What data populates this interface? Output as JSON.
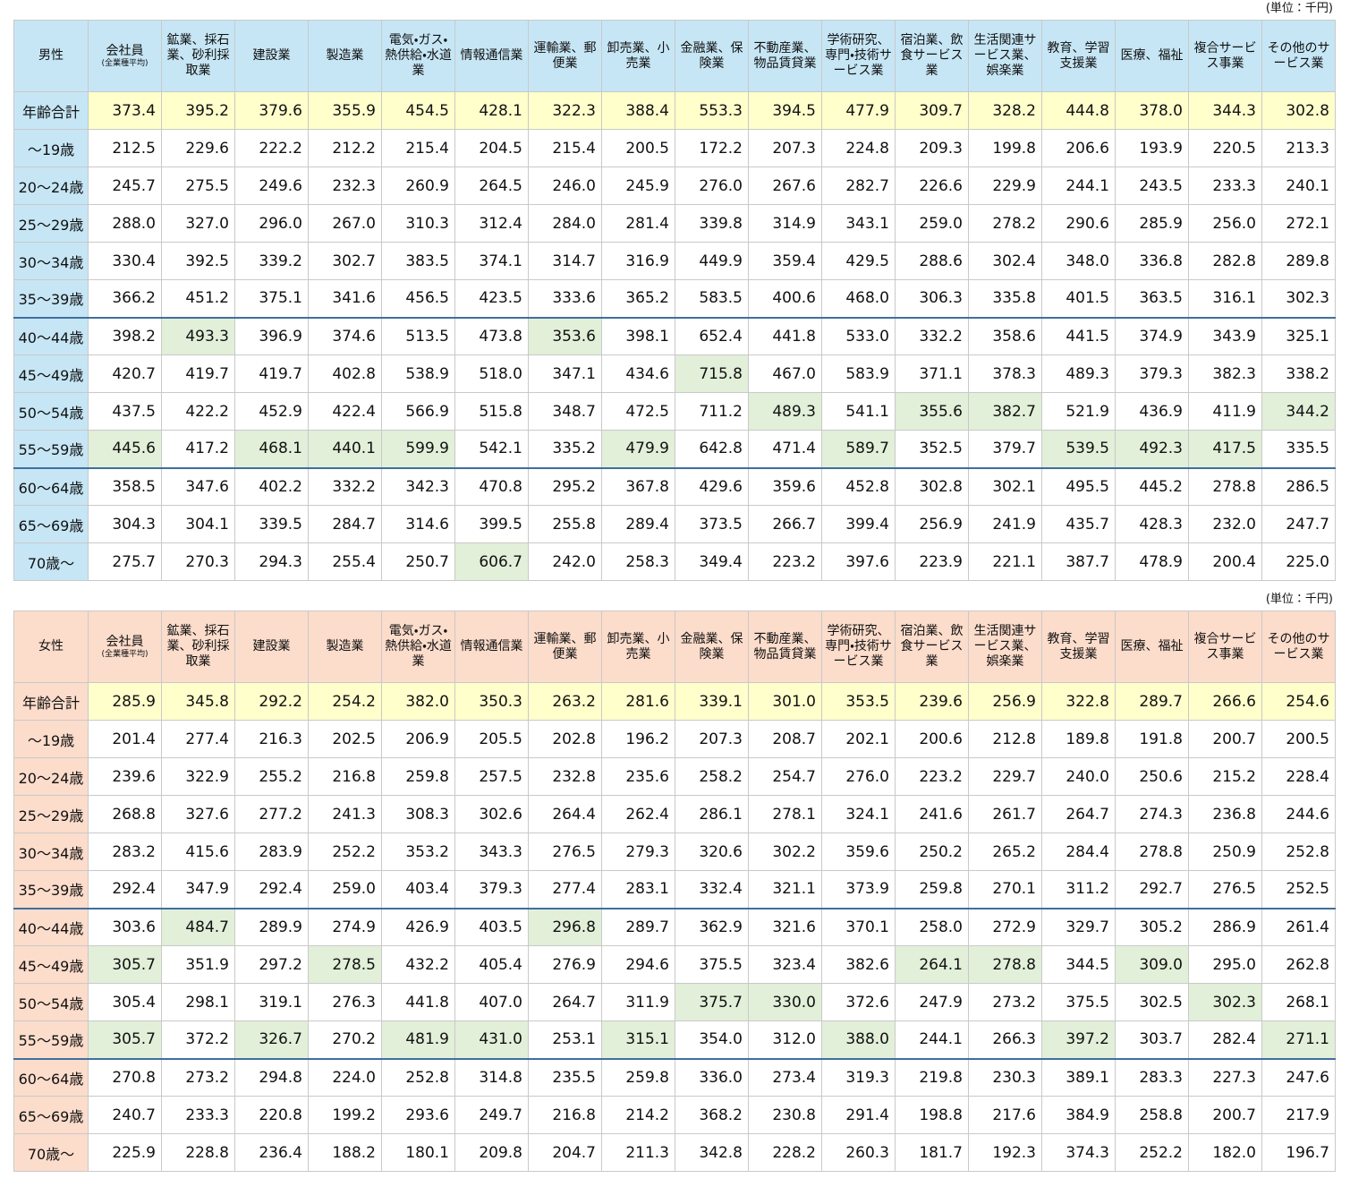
{
  "tables": [
    {
      "unit": "(単位：千円)",
      "corner": "男性",
      "column_note": "(全業種平均)",
      "columns": [
        "会社員",
        "鉱業、採石業、砂利採取業",
        "建設業",
        "製造業",
        "電気・ガス・熱供給・水道業",
        "情報通信業",
        "運輸業、郵便業",
        "卸売業、小売業",
        "金融業、保険業",
        "不動産業、物品賃貸業",
        "学術研究、専門・技術サービス業",
        "宿泊業、飲食サービス業",
        "生活関連サービス業、娯楽業",
        "教育、学習支援業",
        "医療、福祉",
        "複合サービス事業",
        "その他のサービス業"
      ],
      "rows": [
        {
          "label": "年齢合計",
          "values": [
            "373.4",
            "395.2",
            "379.6",
            "355.9",
            "454.5",
            "428.1",
            "322.3",
            "388.4",
            "553.3",
            "394.5",
            "477.9",
            "309.7",
            "328.2",
            "444.8",
            "378.0",
            "344.3",
            "302.8"
          ]
        },
        {
          "label": "～19歳",
          "values": [
            "212.5",
            "229.6",
            "222.2",
            "212.2",
            "215.4",
            "204.5",
            "215.4",
            "200.5",
            "172.2",
            "207.3",
            "224.8",
            "209.3",
            "199.8",
            "206.6",
            "193.9",
            "220.5",
            "213.3"
          ]
        },
        {
          "label": "20～24歳",
          "values": [
            "245.7",
            "275.5",
            "249.6",
            "232.3",
            "260.9",
            "264.5",
            "246.0",
            "245.9",
            "276.0",
            "267.6",
            "282.7",
            "226.6",
            "229.9",
            "244.1",
            "243.5",
            "233.3",
            "240.1"
          ]
        },
        {
          "label": "25～29歳",
          "values": [
            "288.0",
            "327.0",
            "296.0",
            "267.0",
            "310.3",
            "312.4",
            "284.0",
            "281.4",
            "339.8",
            "314.9",
            "343.1",
            "259.0",
            "278.2",
            "290.6",
            "285.9",
            "256.0",
            "272.1"
          ]
        },
        {
          "label": "30～34歳",
          "values": [
            "330.4",
            "392.5",
            "339.2",
            "302.7",
            "383.5",
            "374.1",
            "314.7",
            "316.9",
            "449.9",
            "359.4",
            "429.5",
            "288.6",
            "302.4",
            "348.0",
            "336.8",
            "282.8",
            "289.8"
          ]
        },
        {
          "label": "35～39歳",
          "values": [
            "366.2",
            "451.2",
            "375.1",
            "341.6",
            "456.5",
            "423.5",
            "333.6",
            "365.2",
            "583.5",
            "400.6",
            "468.0",
            "306.3",
            "335.8",
            "401.5",
            "363.5",
            "316.1",
            "302.3"
          ]
        },
        {
          "label": "40～44歳",
          "values": [
            "398.2",
            "493.3",
            "396.9",
            "374.6",
            "513.5",
            "473.8",
            "353.6",
            "398.1",
            "652.4",
            "441.8",
            "533.0",
            "332.2",
            "358.6",
            "441.5",
            "374.9",
            "343.9",
            "325.1"
          ]
        },
        {
          "label": "45～49歳",
          "values": [
            "420.7",
            "419.7",
            "419.7",
            "402.8",
            "538.9",
            "518.0",
            "347.1",
            "434.6",
            "715.8",
            "467.0",
            "583.9",
            "371.1",
            "378.3",
            "489.3",
            "379.3",
            "382.3",
            "338.2"
          ]
        },
        {
          "label": "50～54歳",
          "values": [
            "437.5",
            "422.2",
            "452.9",
            "422.4",
            "566.9",
            "515.8",
            "348.7",
            "472.5",
            "711.2",
            "489.3",
            "541.1",
            "355.6",
            "382.7",
            "521.9",
            "436.9",
            "411.9",
            "344.2"
          ]
        },
        {
          "label": "55～59歳",
          "values": [
            "445.6",
            "417.2",
            "468.1",
            "440.1",
            "599.9",
            "542.1",
            "335.2",
            "479.9",
            "642.8",
            "471.4",
            "589.7",
            "352.5",
            "379.7",
            "539.5",
            "492.3",
            "417.5",
            "335.5"
          ]
        },
        {
          "label": "60～64歳",
          "values": [
            "358.5",
            "347.6",
            "402.2",
            "332.2",
            "342.3",
            "470.8",
            "295.2",
            "367.8",
            "429.6",
            "359.6",
            "452.8",
            "302.8",
            "302.1",
            "495.5",
            "445.2",
            "278.8",
            "286.5"
          ]
        },
        {
          "label": "65～69歳",
          "values": [
            "304.3",
            "304.1",
            "339.5",
            "284.7",
            "314.6",
            "399.5",
            "255.8",
            "289.4",
            "373.5",
            "266.7",
            "399.4",
            "256.9",
            "241.9",
            "435.7",
            "428.3",
            "232.0",
            "247.7"
          ]
        },
        {
          "label": "70歳～",
          "values": [
            "275.7",
            "270.3",
            "294.3",
            "255.4",
            "250.7",
            "606.7",
            "242.0",
            "258.3",
            "349.4",
            "223.2",
            "397.6",
            "223.9",
            "221.1",
            "387.7",
            "478.9",
            "200.4",
            "225.0"
          ]
        }
      ],
      "highlighted_cells": [
        [
          9,
          0
        ],
        [
          6,
          1
        ],
        [
          9,
          2
        ],
        [
          9,
          3
        ],
        [
          9,
          4
        ],
        [
          12,
          5
        ],
        [
          6,
          6
        ],
        [
          9,
          7
        ],
        [
          7,
          8
        ],
        [
          8,
          9
        ],
        [
          9,
          10
        ],
        [
          8,
          11
        ],
        [
          8,
          12
        ],
        [
          9,
          13
        ],
        [
          9,
          14
        ],
        [
          9,
          15
        ],
        [
          8,
          16
        ]
      ]
    },
    {
      "unit": "(単位：千円)",
      "corner": "女性",
      "column_note": "(全業種平均)",
      "columns": [
        "会社員",
        "鉱業、採石業、砂利採取業",
        "建設業",
        "製造業",
        "電気・ガス・熱供給・水道業",
        "情報通信業",
        "運輸業、郵便業",
        "卸売業、小売業",
        "金融業、保険業",
        "不動産業、物品賃貸業",
        "学術研究、専門・技術サービス業",
        "宿泊業、飲食サービス業",
        "生活関連サービス業、娯楽業",
        "教育、学習支援業",
        "医療、福祉",
        "複合サービス事業",
        "その他のサービス業"
      ],
      "rows": [
        {
          "label": "年齢合計",
          "values": [
            "285.9",
            "345.8",
            "292.2",
            "254.2",
            "382.0",
            "350.3",
            "263.2",
            "281.6",
            "339.1",
            "301.0",
            "353.5",
            "239.6",
            "256.9",
            "322.8",
            "289.7",
            "266.6",
            "254.6"
          ]
        },
        {
          "label": "～19歳",
          "values": [
            "201.4",
            "277.4",
            "216.3",
            "202.5",
            "206.9",
            "205.5",
            "202.8",
            "196.2",
            "207.3",
            "208.7",
            "202.1",
            "200.6",
            "212.8",
            "189.8",
            "191.8",
            "200.7",
            "200.5"
          ]
        },
        {
          "label": "20～24歳",
          "values": [
            "239.6",
            "322.9",
            "255.2",
            "216.8",
            "259.8",
            "257.5",
            "232.8",
            "235.6",
            "258.2",
            "254.7",
            "276.0",
            "223.2",
            "229.7",
            "240.0",
            "250.6",
            "215.2",
            "228.4"
          ]
        },
        {
          "label": "25～29歳",
          "values": [
            "268.8",
            "327.6",
            "277.2",
            "241.3",
            "308.3",
            "302.6",
            "264.4",
            "262.4",
            "286.1",
            "278.1",
            "324.1",
            "241.6",
            "261.7",
            "264.7",
            "274.3",
            "236.8",
            "244.6"
          ]
        },
        {
          "label": "30～34歳",
          "values": [
            "283.2",
            "415.6",
            "283.9",
            "252.2",
            "353.2",
            "343.3",
            "276.5",
            "279.3",
            "320.6",
            "302.2",
            "359.6",
            "250.2",
            "265.2",
            "284.4",
            "278.8",
            "250.9",
            "252.8"
          ]
        },
        {
          "label": "35～39歳",
          "values": [
            "292.4",
            "347.9",
            "292.4",
            "259.0",
            "403.4",
            "379.3",
            "277.4",
            "283.1",
            "332.4",
            "321.1",
            "373.9",
            "259.8",
            "270.1",
            "311.2",
            "292.7",
            "276.5",
            "252.5"
          ]
        },
        {
          "label": "40～44歳",
          "values": [
            "303.6",
            "484.7",
            "289.9",
            "274.9",
            "426.9",
            "403.5",
            "296.8",
            "289.7",
            "362.9",
            "321.6",
            "370.1",
            "258.0",
            "272.9",
            "329.7",
            "305.2",
            "286.9",
            "261.4"
          ]
        },
        {
          "label": "45～49歳",
          "values": [
            "305.7",
            "351.9",
            "297.2",
            "278.5",
            "432.2",
            "405.4",
            "276.9",
            "294.6",
            "375.5",
            "323.4",
            "382.6",
            "264.1",
            "278.8",
            "344.5",
            "309.0",
            "295.0",
            "262.8"
          ]
        },
        {
          "label": "50～54歳",
          "values": [
            "305.4",
            "298.1",
            "319.1",
            "276.3",
            "441.8",
            "407.0",
            "264.7",
            "311.9",
            "375.7",
            "330.0",
            "372.6",
            "247.9",
            "273.2",
            "375.5",
            "302.5",
            "302.3",
            "268.1"
          ]
        },
        {
          "label": "55～59歳",
          "values": [
            "305.7",
            "372.2",
            "326.7",
            "270.2",
            "481.9",
            "431.0",
            "253.1",
            "315.1",
            "354.0",
            "312.0",
            "388.0",
            "244.1",
            "266.3",
            "397.2",
            "303.7",
            "282.4",
            "271.1"
          ]
        },
        {
          "label": "60～64歳",
          "values": [
            "270.8",
            "273.2",
            "294.8",
            "224.0",
            "252.8",
            "314.8",
            "235.5",
            "259.8",
            "336.0",
            "273.4",
            "319.3",
            "219.8",
            "230.3",
            "389.1",
            "283.3",
            "227.3",
            "247.6"
          ]
        },
        {
          "label": "65～69歳",
          "values": [
            "240.7",
            "233.3",
            "220.8",
            "199.2",
            "293.6",
            "249.7",
            "216.8",
            "214.2",
            "368.2",
            "230.8",
            "291.4",
            "198.8",
            "217.6",
            "384.9",
            "258.8",
            "200.7",
            "217.9"
          ]
        },
        {
          "label": "70歳～",
          "values": [
            "225.9",
            "228.8",
            "236.4",
            "188.2",
            "180.1",
            "209.8",
            "204.7",
            "211.3",
            "342.8",
            "228.2",
            "260.3",
            "181.7",
            "192.3",
            "374.3",
            "252.2",
            "182.0",
            "196.7"
          ]
        }
      ],
      "highlighted_cells": [
        [
          7,
          0
        ],
        [
          9,
          0
        ],
        [
          6,
          1
        ],
        [
          9,
          2
        ],
        [
          7,
          3
        ],
        [
          9,
          4
        ],
        [
          9,
          5
        ],
        [
          6,
          6
        ],
        [
          9,
          7
        ],
        [
          8,
          8
        ],
        [
          8,
          9
        ],
        [
          9,
          10
        ],
        [
          7,
          11
        ],
        [
          7,
          12
        ],
        [
          9,
          13
        ],
        [
          7,
          14
        ],
        [
          8,
          15
        ],
        [
          9,
          16
        ]
      ]
    }
  ]
}
